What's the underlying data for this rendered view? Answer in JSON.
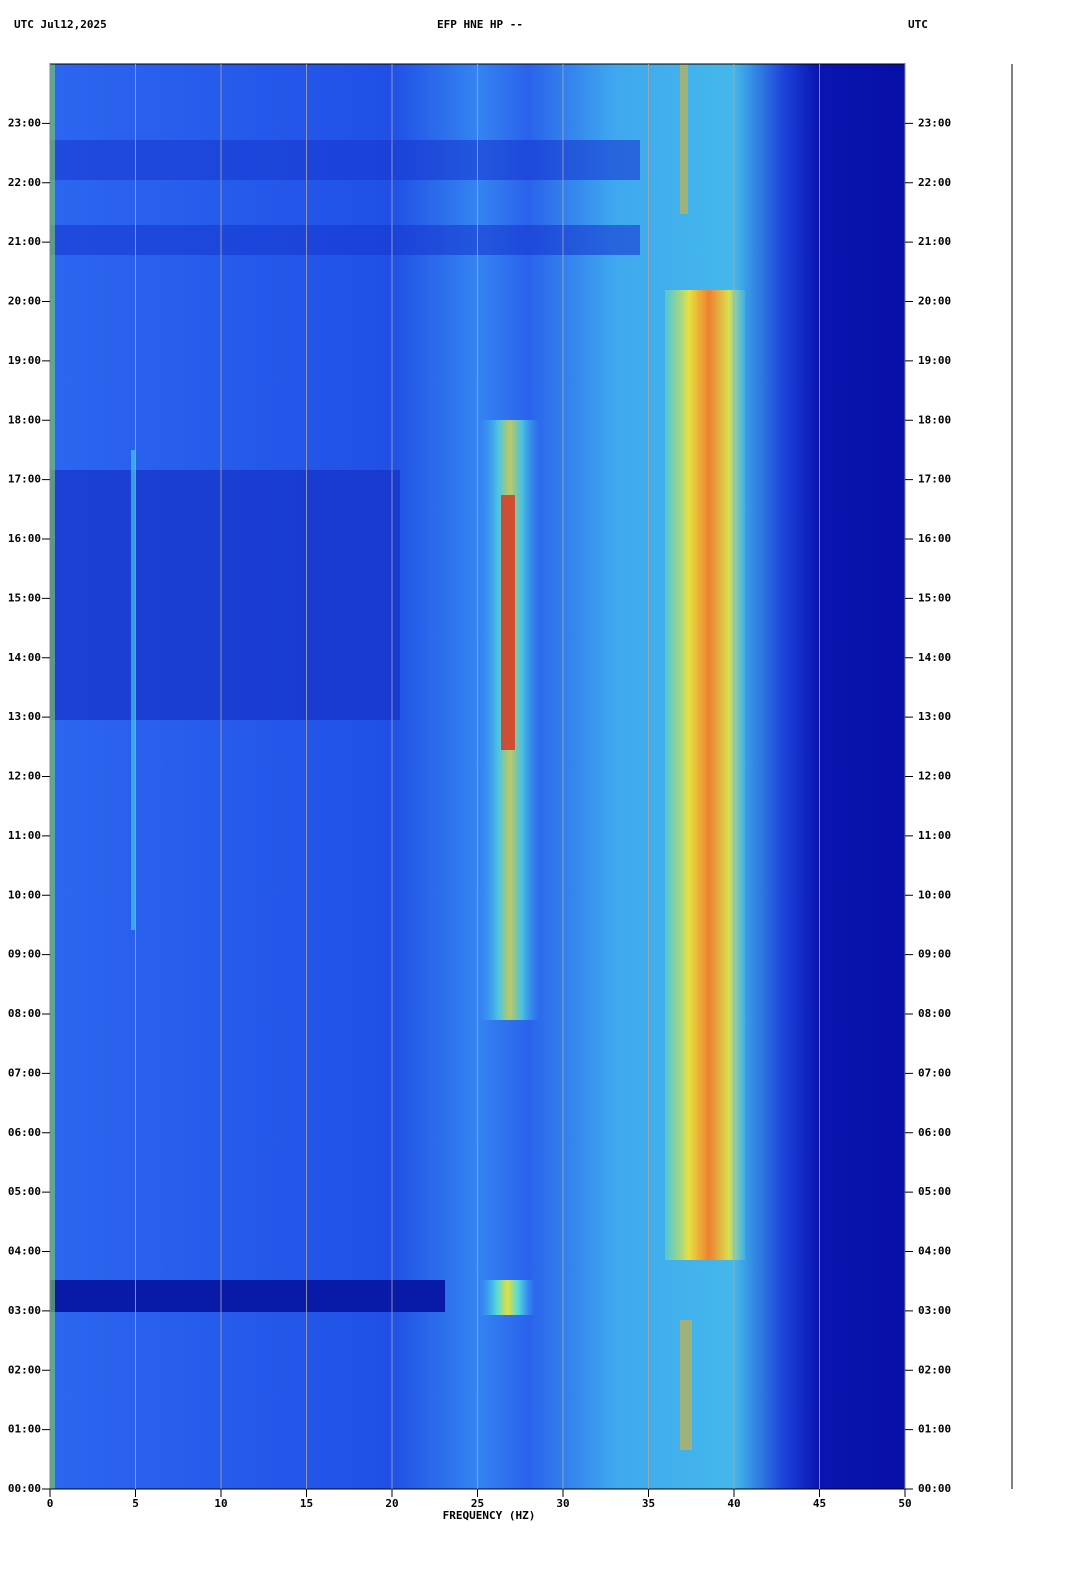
{
  "chart_data": {
    "type": "spectrogram",
    "title": "EFP HNE HP --",
    "date_label": "UTC  Jul12,2025",
    "timezone_label": "UTC",
    "xlabel": "FREQUENCY (HZ)",
    "xlim": [
      0,
      50
    ],
    "xticks": [
      0,
      5,
      10,
      15,
      20,
      25,
      30,
      35,
      40,
      45,
      50
    ],
    "ylim": [
      0,
      24
    ],
    "yticks": [
      {
        "value": 0,
        "label": "00:00"
      },
      {
        "value": 1,
        "label": "01:00"
      },
      {
        "value": 2,
        "label": "02:00"
      },
      {
        "value": 3,
        "label": "03:00"
      },
      {
        "value": 4,
        "label": "04:00"
      },
      {
        "value": 5,
        "label": "05:00"
      },
      {
        "value": 6,
        "label": "06:00"
      },
      {
        "value": 7,
        "label": "07:00"
      },
      {
        "value": 8,
        "label": "08:00"
      },
      {
        "value": 9,
        "label": "09:00"
      },
      {
        "value": 10,
        "label": "10:00"
      },
      {
        "value": 11,
        "label": "11:00"
      },
      {
        "value": 12,
        "label": "12:00"
      },
      {
        "value": 13,
        "label": "13:00"
      },
      {
        "value": 14,
        "label": "14:00"
      },
      {
        "value": 15,
        "label": "15:00"
      },
      {
        "value": 16,
        "label": "16:00"
      },
      {
        "value": 17,
        "label": "17:00"
      },
      {
        "value": 18,
        "label": "18:00"
      },
      {
        "value": 19,
        "label": "19:00"
      },
      {
        "value": 20,
        "label": "20:00"
      },
      {
        "value": 21,
        "label": "21:00"
      },
      {
        "value": 22,
        "label": "22:00"
      },
      {
        "value": 23,
        "label": "23:00"
      }
    ],
    "grid": true
  }
}
